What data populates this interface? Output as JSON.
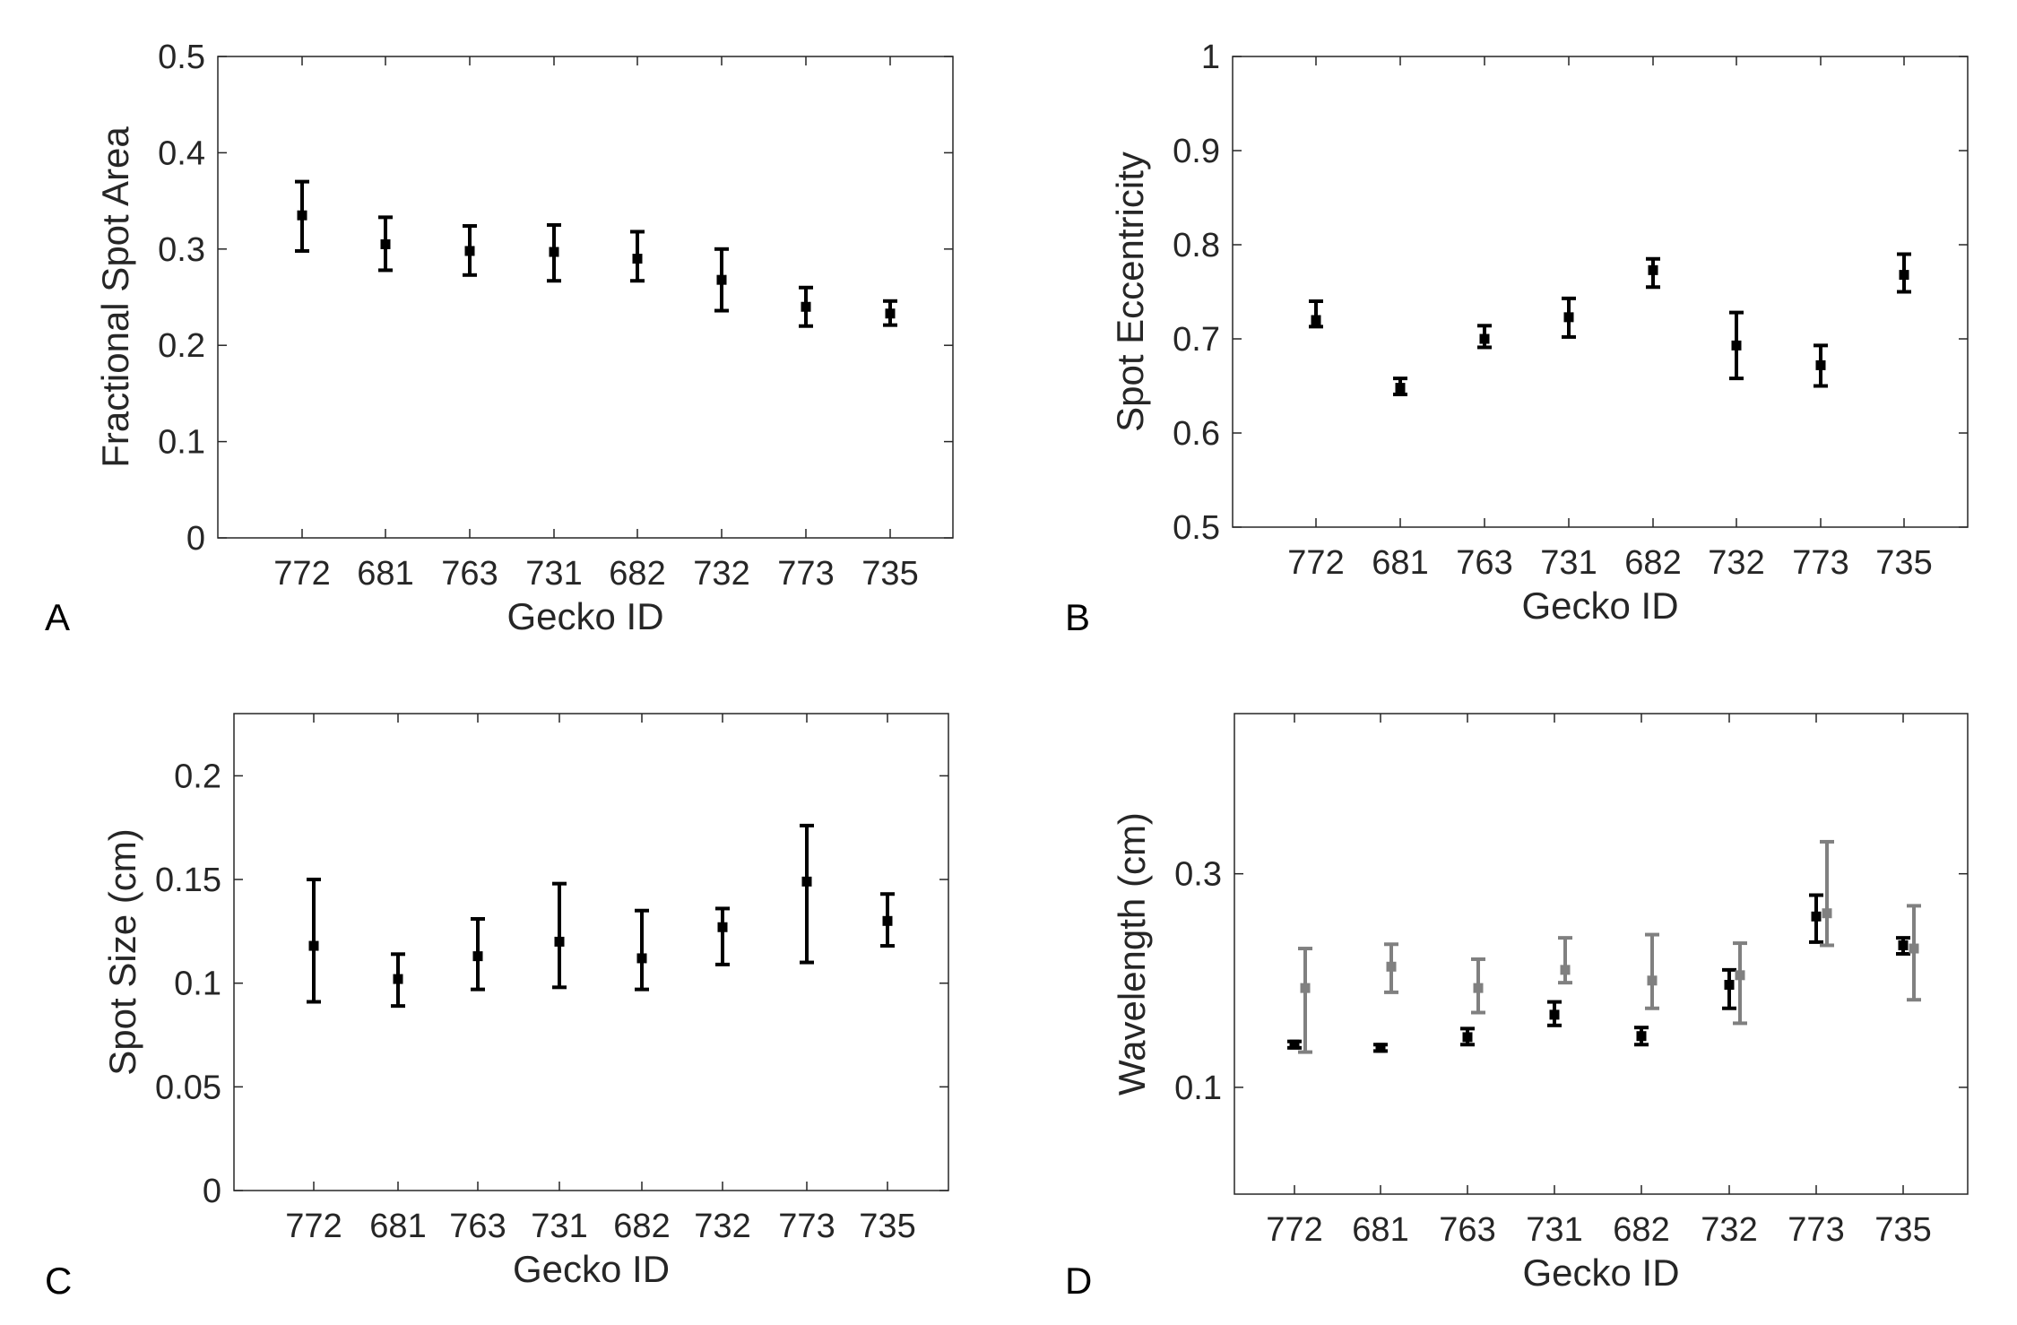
{
  "chart_data": [
    {
      "type": "scatter",
      "panel": "A",
      "xlabel": "Gecko ID",
      "ylabel": "Fractional Spot Area",
      "categories": [
        "772",
        "681",
        "763",
        "731",
        "682",
        "732",
        "773",
        "735"
      ],
      "ylim": [
        0,
        0.5
      ],
      "yticks": [
        "0",
        "0.1",
        "0.2",
        "0.3",
        "0.4",
        "0.5"
      ],
      "series": [
        {
          "color": "#000000",
          "values": [
            0.335,
            0.305,
            0.298,
            0.297,
            0.29,
            0.268,
            0.24,
            0.233
          ],
          "err_low": [
            0.298,
            0.278,
            0.273,
            0.267,
            0.267,
            0.236,
            0.22,
            0.221
          ],
          "err_high": [
            0.37,
            0.333,
            0.324,
            0.325,
            0.318,
            0.3,
            0.26,
            0.246
          ]
        }
      ]
    },
    {
      "type": "scatter",
      "panel": "B",
      "xlabel": "Gecko ID",
      "ylabel": "Spot Eccentricity",
      "categories": [
        "772",
        "681",
        "763",
        "731",
        "682",
        "732",
        "773",
        "735"
      ],
      "ylim": [
        0.5,
        1
      ],
      "yticks": [
        "0.5",
        "0.6",
        "0.7",
        "0.8",
        "0.9",
        "1"
      ],
      "series": [
        {
          "color": "#000000",
          "values": [
            0.72,
            0.648,
            0.7,
            0.723,
            0.773,
            0.693,
            0.672,
            0.768
          ],
          "err_low": [
            0.713,
            0.641,
            0.691,
            0.702,
            0.755,
            0.658,
            0.65,
            0.75
          ],
          "err_high": [
            0.74,
            0.658,
            0.714,
            0.743,
            0.785,
            0.728,
            0.693,
            0.79
          ]
        }
      ]
    },
    {
      "type": "scatter",
      "panel": "C",
      "xlabel": "Gecko ID",
      "ylabel": "Spot Size (cm)",
      "categories": [
        "772",
        "681",
        "763",
        "731",
        "682",
        "732",
        "773",
        "735"
      ],
      "ylim": [
        0,
        0.23
      ],
      "yticks": [
        "0",
        "0.05",
        "0.1",
        "0.15",
        "0.2"
      ],
      "series": [
        {
          "color": "#000000",
          "values": [
            0.118,
            0.102,
            0.113,
            0.12,
            0.112,
            0.127,
            0.149,
            0.13
          ],
          "err_low": [
            0.091,
            0.089,
            0.097,
            0.098,
            0.097,
            0.109,
            0.11,
            0.118
          ],
          "err_high": [
            0.15,
            0.114,
            0.131,
            0.148,
            0.135,
            0.136,
            0.176,
            0.143
          ]
        }
      ]
    },
    {
      "type": "scatter",
      "panel": "D",
      "xlabel": "Gecko ID",
      "ylabel": "Wavelength (cm)",
      "categories": [
        "772",
        "681",
        "763",
        "731",
        "682",
        "732",
        "773",
        "735"
      ],
      "ylim": [
        0,
        0.45
      ],
      "yticks": [
        "0.1",
        "0.3"
      ],
      "series": [
        {
          "color": "#000000",
          "values": [
            0.14,
            0.137,
            0.147,
            0.168,
            0.148,
            0.196,
            0.26,
            0.233
          ],
          "err_low": [
            0.137,
            0.134,
            0.14,
            0.158,
            0.14,
            0.174,
            0.236,
            0.225
          ],
          "err_high": [
            0.143,
            0.14,
            0.155,
            0.18,
            0.156,
            0.21,
            0.28,
            0.24
          ]
        },
        {
          "color": "#808080",
          "values": [
            0.193,
            0.213,
            0.193,
            0.21,
            0.2,
            0.205,
            0.263,
            0.23
          ],
          "err_low": [
            0.133,
            0.189,
            0.17,
            0.198,
            0.174,
            0.16,
            0.233,
            0.182
          ],
          "err_high": [
            0.23,
            0.234,
            0.22,
            0.24,
            0.243,
            0.235,
            0.33,
            0.27
          ]
        }
      ]
    }
  ],
  "panel_labels": [
    "A",
    "B",
    "C",
    "D"
  ]
}
